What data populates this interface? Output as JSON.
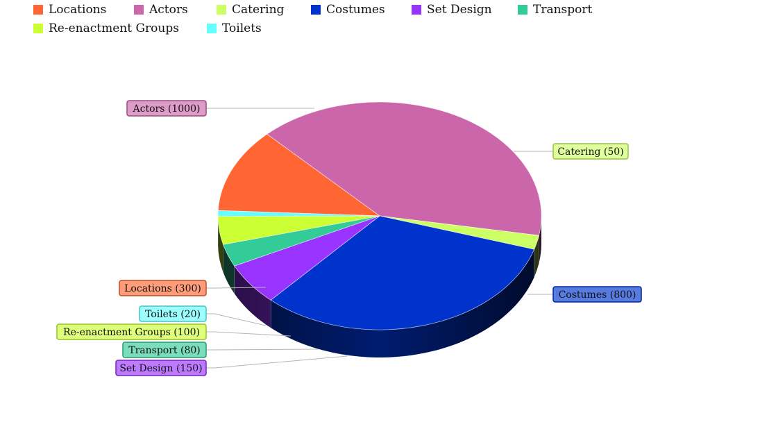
{
  "chart_data": {
    "type": "pie",
    "variant": "3d",
    "legend_position": "top-left",
    "slices": [
      {
        "name": "Locations",
        "value": 300,
        "label": "Locations (300)",
        "color": "#ff6633"
      },
      {
        "name": "Actors",
        "value": 1000,
        "label": "Actors (1000)",
        "color": "#cc66aa"
      },
      {
        "name": "Catering",
        "value": 50,
        "label": "Catering (50)",
        "color": "#ccff66"
      },
      {
        "name": "Costumes",
        "value": 800,
        "label": "Costumes (800)",
        "color": "#0033cc"
      },
      {
        "name": "Set Design",
        "value": 150,
        "label": "Set Design (150)",
        "color": "#9933ff"
      },
      {
        "name": "Transport",
        "value": 80,
        "label": "Transport (80)",
        "color": "#33cc99"
      },
      {
        "name": "Re-enactment Groups",
        "value": 100,
        "label": "Re-enactment Groups (100)",
        "color": "#ccff33"
      },
      {
        "name": "Toilets",
        "value": 20,
        "label": "Toilets (20)",
        "color": "#66ffff"
      }
    ]
  }
}
